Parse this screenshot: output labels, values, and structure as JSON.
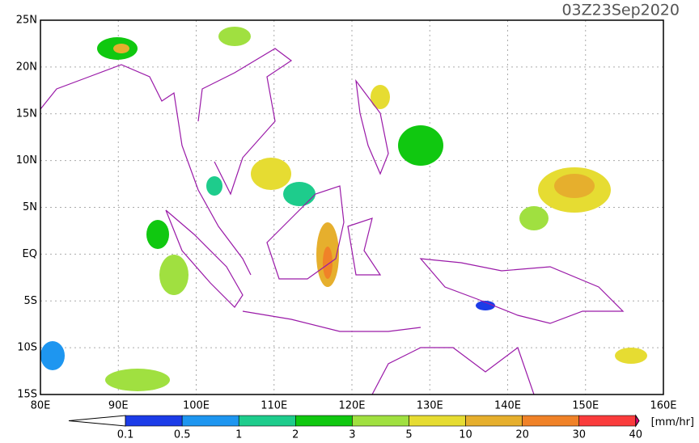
{
  "title": "03Z23Sep2020",
  "lat_labels": [
    "25N",
    "20N",
    "15N",
    "10N",
    "5N",
    "EQ",
    "5S",
    "10S",
    "15S"
  ],
  "lon_labels": [
    "80E",
    "90E",
    "100E",
    "110E",
    "120E",
    "130E",
    "140E",
    "150E",
    "160E"
  ],
  "colorbar": {
    "labels": [
      "0.1",
      "0.5",
      "1",
      "2",
      "3",
      "5",
      "10",
      "20",
      "30",
      "40"
    ],
    "colors": [
      "#ffffff",
      "#1c3ce8",
      "#1e96f0",
      "#1ecc8c",
      "#10c810",
      "#a0e040",
      "#e6dc32",
      "#e6af2d",
      "#f08228",
      "#fa3c3c",
      "#f00082"
    ],
    "unit": "[mm/hr]"
  }
}
